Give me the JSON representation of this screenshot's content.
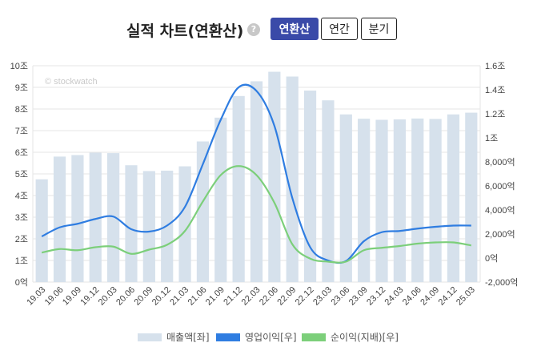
{
  "header": {
    "title": "실적 차트(연환산)",
    "help_icon": "?",
    "tabs": [
      {
        "label": "연환산",
        "active": true
      },
      {
        "label": "연간",
        "active": false
      },
      {
        "label": "분기",
        "active": false
      }
    ]
  },
  "watermark": "© stockwatch",
  "colors": {
    "revenue": "#d6e1ec",
    "operating_profit": "#2f7de1",
    "net_income": "#7ccf7a",
    "grid": "#e5e5e5",
    "active_tab": "#3a4aa8"
  },
  "chart_data": {
    "type": "bar+line",
    "categories": [
      "19.03",
      "19.06",
      "19.09",
      "19.12",
      "20.03",
      "20.06",
      "20.09",
      "20.12",
      "21.03",
      "21.06",
      "21.09",
      "21.12",
      "22.03",
      "22.06",
      "22.09",
      "22.12",
      "23.03",
      "23.06",
      "23.09",
      "23.12",
      "24.03",
      "24.06",
      "24.09",
      "24.12",
      "25.03"
    ],
    "left_axis": {
      "ticks": [
        "0억",
        "1조",
        "2조",
        "3조",
        "4조",
        "5조",
        "6조",
        "7조",
        "8조",
        "9조",
        "10조"
      ],
      "ylim": [
        0,
        10
      ]
    },
    "right_axis": {
      "ticks": [
        "-2,000억",
        "0억",
        "2,000억",
        "4,000억",
        "6,000억",
        "8,000억",
        "1조",
        "1.2조",
        "1.4조",
        "1.6조"
      ],
      "ylim": [
        -2000,
        16000
      ]
    },
    "series": [
      {
        "name": "매출액[좌]",
        "type": "bar",
        "axis": "left",
        "values": [
          4.75,
          5.8,
          5.87,
          5.98,
          5.96,
          5.4,
          5.13,
          5.15,
          5.35,
          6.5,
          7.6,
          8.6,
          9.28,
          9.72,
          9.5,
          8.85,
          8.4,
          7.75,
          7.55,
          7.5,
          7.52,
          7.56,
          7.54,
          7.75,
          7.83
        ]
      },
      {
        "name": "영업이익[우]",
        "type": "line",
        "axis": "right",
        "values": [
          1800,
          2550,
          2850,
          3250,
          3450,
          2400,
          2200,
          2700,
          4250,
          7800,
          11500,
          14200,
          13900,
          11000,
          5000,
          900,
          -200,
          -250,
          1400,
          2150,
          2250,
          2450,
          2600,
          2700,
          2700
        ]
      },
      {
        "name": "순이익(지배)[우]",
        "type": "line",
        "axis": "right",
        "values": [
          450,
          750,
          650,
          900,
          950,
          350,
          700,
          1100,
          2250,
          4700,
          6900,
          7650,
          6900,
          4600,
          1150,
          -50,
          -300,
          -300,
          650,
          850,
          1000,
          1200,
          1300,
          1300,
          1050
        ]
      }
    ]
  }
}
